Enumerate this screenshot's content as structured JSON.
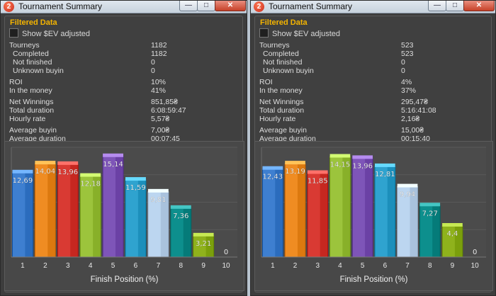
{
  "colors": {
    "panel_title": "#f4b400",
    "bars": [
      "#3e7fd0",
      "#ef8c22",
      "#d93a33",
      "#9cc43c",
      "#7e55b8",
      "#2fa3cf",
      "#bcd6f0",
      "#0d8f8d",
      "#8fb21c",
      "#c9c9c9"
    ]
  },
  "windows": [
    {
      "title": "Tournament Summary",
      "icon_label": "2",
      "buttons": {
        "min": "—",
        "max": "□",
        "close": "✕"
      },
      "filtered_label": "Filtered Data",
      "checkbox_label": "Show $EV adjusted",
      "stats": [
        {
          "label": "Tourneys",
          "value": "1182",
          "indent": false
        },
        {
          "label": "Completed",
          "value": "1182",
          "indent": true
        },
        {
          "label": "Not finished",
          "value": "0",
          "indent": true
        },
        {
          "label": "Unknown buyin",
          "value": "0",
          "indent": true
        },
        {
          "label": "ROI",
          "value": "10%",
          "indent": false
        },
        {
          "label": "In the money",
          "value": "41%",
          "indent": false
        },
        {
          "label": "Net Winnings",
          "value": "851,85₴",
          "indent": false
        },
        {
          "label": "Total duration",
          "value": "6:08:59:47",
          "indent": false
        },
        {
          "label": "Hourly rate",
          "value": "5,57₴",
          "indent": false
        },
        {
          "label": "Average buyin",
          "value": "7,00₴",
          "indent": false
        },
        {
          "label": "Average duration",
          "value": "00:07:45",
          "indent": false
        }
      ],
      "chart_data": {
        "type": "bar",
        "categories": [
          "1",
          "2",
          "3",
          "4",
          "5",
          "6",
          "7",
          "8",
          "9",
          "10"
        ],
        "values": [
          12.69,
          14.04,
          13.96,
          12.18,
          15.14,
          11.59,
          9.81,
          7.36,
          3.21,
          0
        ],
        "value_labels": [
          "12,69",
          "14,04",
          "13,96",
          "12,18",
          "15,14",
          "11,59",
          "9,81",
          "7,36",
          "3,21",
          "0"
        ],
        "xlabel": "Finish Position (%)",
        "ylim": [
          0,
          16.5
        ],
        "grid": true
      }
    },
    {
      "title": "Tournament Summary",
      "icon_label": "2",
      "buttons": {
        "min": "—",
        "max": "□",
        "close": "✕"
      },
      "filtered_label": "Filtered Data",
      "checkbox_label": "Show $EV adjusted",
      "stats": [
        {
          "label": "Tourneys",
          "value": "523",
          "indent": false
        },
        {
          "label": "Completed",
          "value": "523",
          "indent": true
        },
        {
          "label": "Not finished",
          "value": "0",
          "indent": true
        },
        {
          "label": "Unknown buyin",
          "value": "0",
          "indent": true
        },
        {
          "label": "ROI",
          "value": "4%",
          "indent": false
        },
        {
          "label": "In the money",
          "value": "37%",
          "indent": false
        },
        {
          "label": "Net Winnings",
          "value": "295,47₴",
          "indent": false
        },
        {
          "label": "Total duration",
          "value": "5:16:41:08",
          "indent": false
        },
        {
          "label": "Hourly rate",
          "value": "2,16₴",
          "indent": false
        },
        {
          "label": "Average buyin",
          "value": "15,00₴",
          "indent": false
        },
        {
          "label": "Average duration",
          "value": "00:15:40",
          "indent": false
        }
      ],
      "chart_data": {
        "type": "bar",
        "categories": [
          "1",
          "2",
          "3",
          "4",
          "5",
          "6",
          "7",
          "8",
          "9",
          "10"
        ],
        "values": [
          12.43,
          13.19,
          11.85,
          14.15,
          13.96,
          12.81,
          9.94,
          7.27,
          4.4,
          0
        ],
        "value_labels": [
          "12,43",
          "13,19",
          "11,85",
          "14,15",
          "13,96",
          "12,81",
          "9,94",
          "7,27",
          "4,4",
          "0"
        ],
        "xlabel": "Finish Position (%)",
        "ylim": [
          0,
          15.5
        ],
        "grid": true
      }
    }
  ]
}
